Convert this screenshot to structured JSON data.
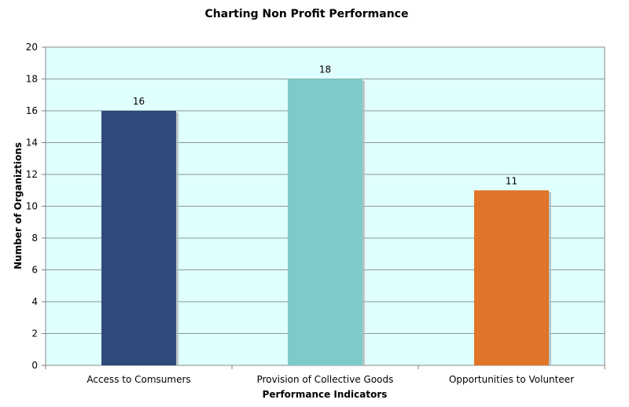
{
  "chart_data": {
    "type": "bar",
    "title": "Charting Non Profit Performance",
    "xlabel": "Performance Indicators",
    "ylabel": "Number of Organiztions",
    "categories": [
      "Access to Comsumers",
      "Provision of Collective Goods",
      "Opportunities to Volunteer"
    ],
    "values": [
      16,
      18,
      11
    ],
    "bar_colors": [
      "#2f4b7c",
      "#7ccbca",
      "#e07428"
    ],
    "data_labels": [
      "16",
      "18",
      "11"
    ],
    "ylim": [
      0,
      20
    ],
    "yticks": [
      0,
      2,
      4,
      6,
      8,
      10,
      12,
      14,
      16,
      18,
      20
    ],
    "ytick_labels": [
      "0",
      "2",
      "4",
      "6",
      "8",
      "10",
      "12",
      "14",
      "16",
      "18",
      "20"
    ],
    "grid": true,
    "legend": "none",
    "plot_background": "#e0ffff"
  }
}
